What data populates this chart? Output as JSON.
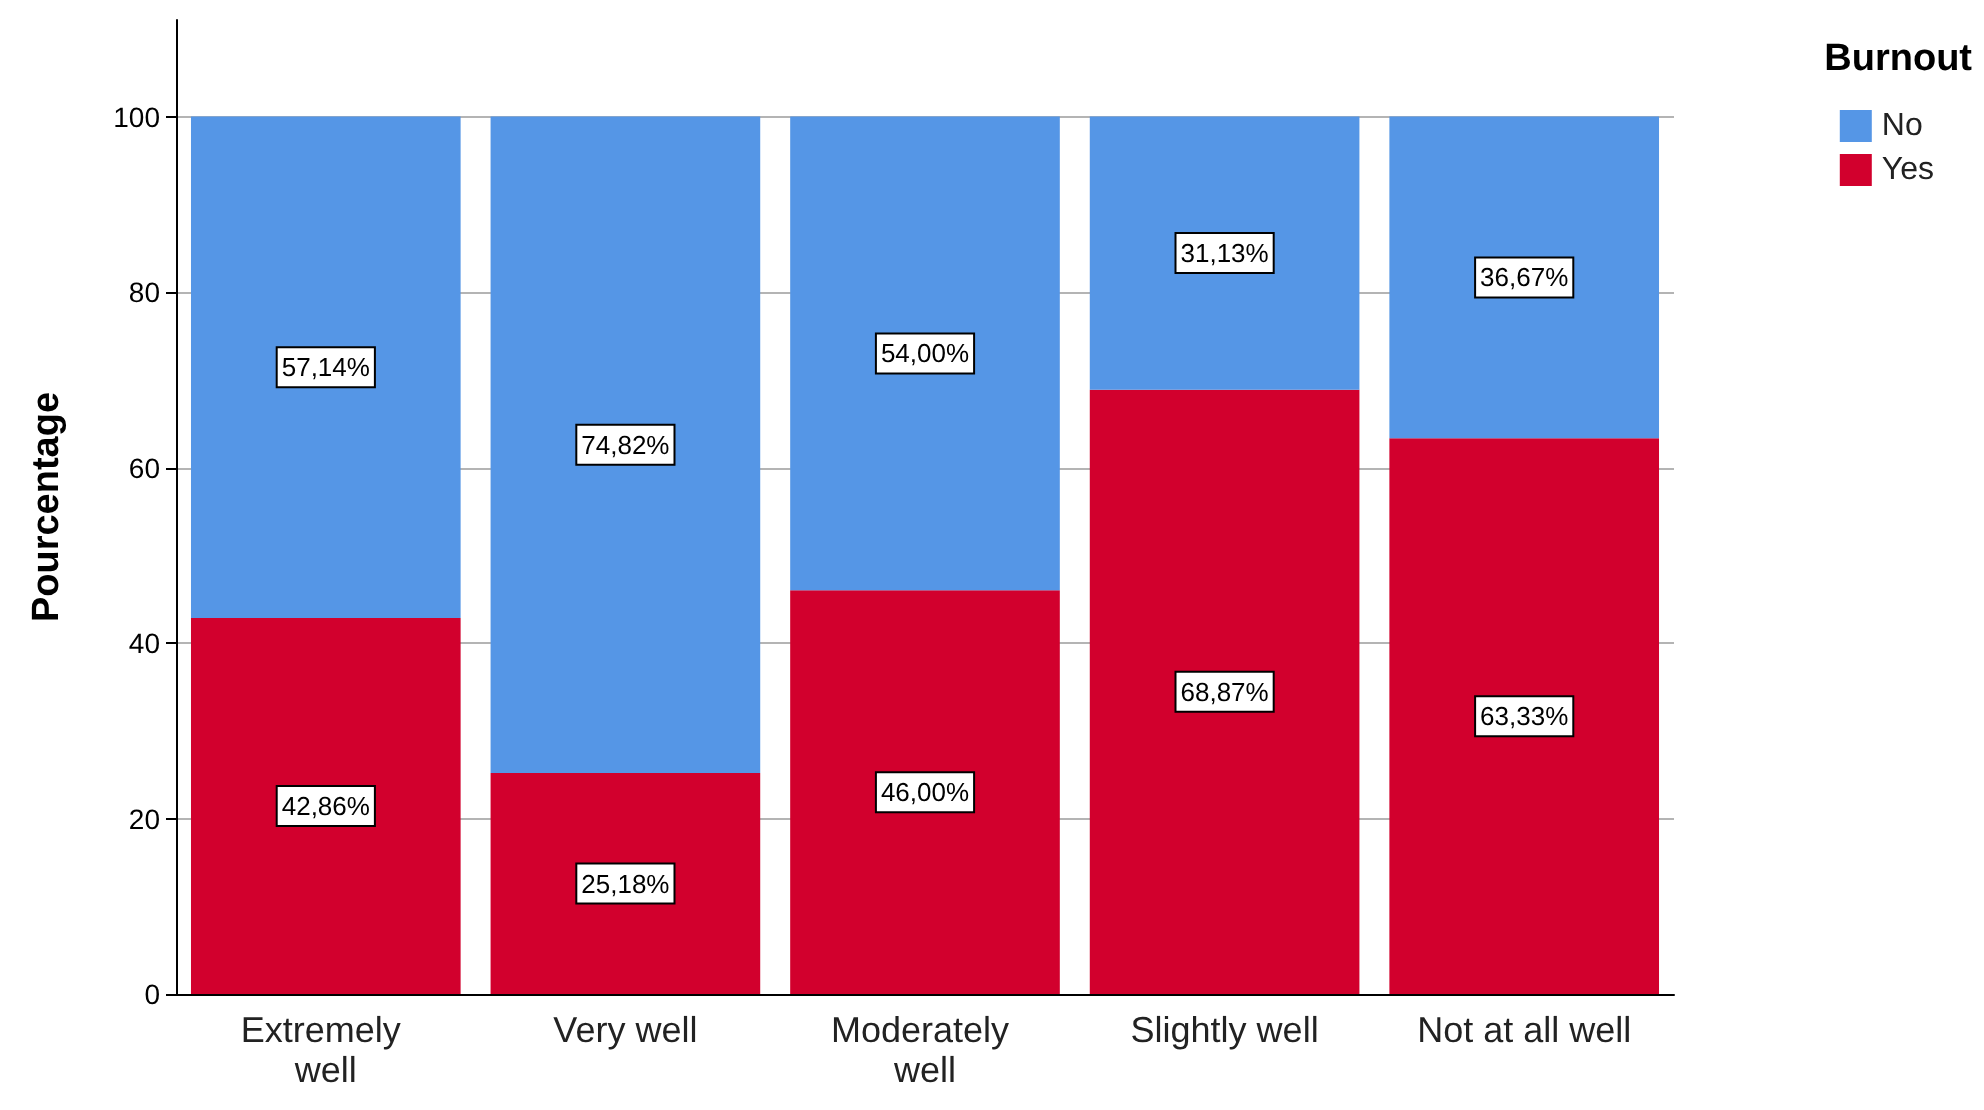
{
  "chart_data": {
    "type": "bar",
    "stacked": true,
    "ylabel": "Pourcentage",
    "legend_title": "Burnout",
    "legend": "top right",
    "grid": "y",
    "categories": [
      "Extremely well",
      "Very well",
      "Moderately well",
      "Slightly well",
      "Not at all well"
    ],
    "ylim": [
      0,
      111
    ],
    "yticks": [
      0,
      20,
      40,
      60,
      80,
      100
    ],
    "series": [
      {
        "name": "Yes",
        "color": "#d2002d",
        "values": [
          42.86,
          25.18,
          46.0,
          68.87,
          63.33
        ],
        "value_labels": [
          "42,86%",
          "25,18%",
          "46,00%",
          "68,87%",
          "63,33%"
        ]
      },
      {
        "name": "No",
        "color": "#5596e6",
        "values": [
          57.14,
          74.82,
          54.0,
          31.13,
          36.67
        ],
        "value_labels": [
          "57,14%",
          "74,82%",
          "54,00%",
          "31,13%",
          "36,67%"
        ]
      }
    ]
  }
}
